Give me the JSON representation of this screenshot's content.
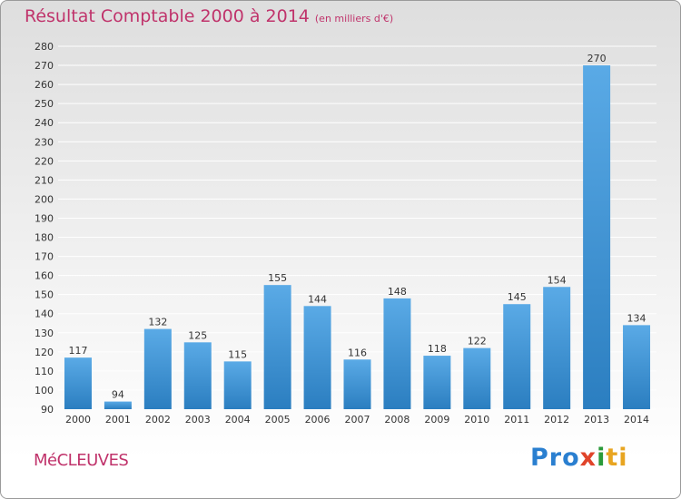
{
  "header": {
    "title": "Résultat Comptable 2000 à 2014",
    "subtitle": "(en milliers d'€)"
  },
  "footer": {
    "commune": "MéCLEUVES",
    "logo": {
      "p1": "Pro",
      "p2": "x",
      "p3": "i",
      "p4": "ti"
    }
  },
  "colors": {
    "title": "#c0336b",
    "bar_top": "#5aaae6",
    "bar_bottom": "#2b7ec0",
    "grid": "#ffffff",
    "background_top": "#dedede",
    "background_bottom": "#ffffff"
  },
  "chart_data": {
    "type": "bar",
    "title": "Résultat Comptable 2000 à 2014",
    "subtitle": "(en milliers d'€)",
    "xlabel": "",
    "ylabel": "",
    "categories": [
      "2000",
      "2001",
      "2002",
      "2003",
      "2004",
      "2005",
      "2006",
      "2007",
      "2008",
      "2009",
      "2010",
      "2011",
      "2012",
      "2013",
      "2014"
    ],
    "values": [
      117,
      94,
      132,
      125,
      115,
      155,
      144,
      116,
      148,
      118,
      122,
      145,
      154,
      270,
      134
    ],
    "ylim": [
      90,
      280
    ],
    "yticks": [
      90,
      100,
      110,
      120,
      130,
      140,
      150,
      160,
      170,
      180,
      190,
      200,
      210,
      220,
      230,
      240,
      250,
      260,
      270,
      280
    ],
    "grid": true,
    "legend": "none"
  }
}
